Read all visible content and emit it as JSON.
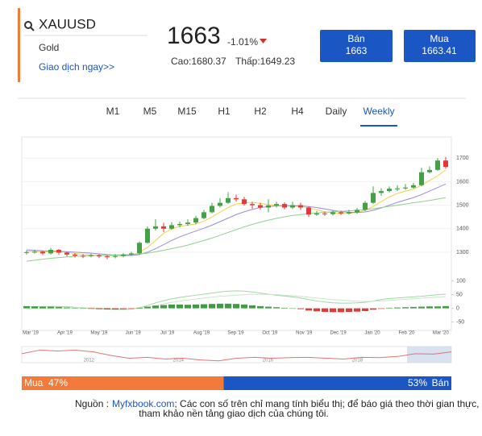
{
  "header": {
    "symbol": "XAUUSD",
    "name": "Gold",
    "trade_link": "Giao dịch ngay>>",
    "price": "1663",
    "change": "-1.01%",
    "high": "Cao:1680.37",
    "low": "Thấp:1649.23"
  },
  "buttons": [
    {
      "label": "Bán",
      "price": "1663"
    },
    {
      "label": "Mua",
      "price": "1663.41"
    }
  ],
  "tabs": [
    "M1",
    "M5",
    "M15",
    "H1",
    "H2",
    "H4",
    "Daily",
    "Weekly"
  ],
  "active_tab": 7,
  "chart_data": [
    {
      "type": "candlestick",
      "x_labels": [
        "Mar '19",
        "Apr '19",
        "May '19",
        "Jun '19",
        "Jul '19",
        "Aug '19",
        "Sep '19",
        "Oct '19",
        "Nov '19",
        "Dec '19",
        "Jan '20",
        "Feb '20",
        "Mar '20"
      ],
      "open": [
        1298,
        1300,
        1302,
        1295,
        1310,
        1298,
        1290,
        1285,
        1283,
        1287,
        1282,
        1280,
        1284,
        1290,
        1295,
        1340,
        1400,
        1410,
        1400,
        1415,
        1420,
        1426,
        1445,
        1470,
        1497,
        1510,
        1530,
        1525,
        1505,
        1500,
        1490,
        1499,
        1505,
        1490,
        1500,
        1490,
        1460,
        1465,
        1462,
        1470,
        1465,
        1470,
        1480,
        1510,
        1552,
        1560,
        1570,
        1571,
        1575,
        1585,
        1640,
        1650,
        1690
      ],
      "high": [
        1308,
        1310,
        1306,
        1318,
        1314,
        1302,
        1296,
        1292,
        1294,
        1292,
        1288,
        1292,
        1296,
        1302,
        1346,
        1410,
        1440,
        1425,
        1428,
        1430,
        1440,
        1455,
        1480,
        1510,
        1530,
        1555,
        1545,
        1535,
        1515,
        1510,
        1525,
        1515,
        1512,
        1515,
        1510,
        1495,
        1475,
        1472,
        1478,
        1476,
        1480,
        1488,
        1518,
        1580,
        1572,
        1580,
        1585,
        1590,
        1595,
        1660,
        1665,
        1700,
        1705
      ],
      "low": [
        1290,
        1294,
        1288,
        1290,
        1290,
        1282,
        1277,
        1275,
        1278,
        1275,
        1270,
        1274,
        1278,
        1284,
        1290,
        1336,
        1392,
        1385,
        1395,
        1405,
        1412,
        1418,
        1440,
        1465,
        1490,
        1505,
        1515,
        1498,
        1485,
        1480,
        1470,
        1490,
        1482,
        1484,
        1480,
        1450,
        1455,
        1455,
        1456,
        1458,
        1460,
        1464,
        1475,
        1505,
        1540,
        1555,
        1560,
        1565,
        1570,
        1580,
        1635,
        1645,
        1655
      ],
      "close": [
        1300,
        1302,
        1295,
        1310,
        1298,
        1290,
        1285,
        1283,
        1287,
        1282,
        1280,
        1284,
        1290,
        1295,
        1340,
        1400,
        1410,
        1400,
        1415,
        1420,
        1426,
        1445,
        1470,
        1497,
        1510,
        1530,
        1525,
        1505,
        1500,
        1490,
        1499,
        1505,
        1490,
        1500,
        1490,
        1460,
        1465,
        1462,
        1470,
        1465,
        1470,
        1480,
        1510,
        1552,
        1560,
        1570,
        1571,
        1575,
        1585,
        1640,
        1650,
        1690,
        1663
      ],
      "up_color": "#43a047",
      "down_color": "#e53935",
      "ylim": [
        1190,
        1790
      ],
      "yticks": [
        1300,
        1400,
        1500,
        1600,
        1700
      ],
      "grid": true,
      "series": [
        {
          "color": "#f2d24a",
          "values": [
            1305,
            1303,
            1302,
            1302,
            1301,
            1299,
            1295,
            1291,
            1288,
            1286,
            1284,
            1283,
            1284,
            1286,
            1300,
            1320,
            1350,
            1380,
            1400,
            1410,
            1415,
            1420,
            1432,
            1450,
            1470,
            1490,
            1505,
            1510,
            1512,
            1508,
            1502,
            1498,
            1497,
            1496,
            1495,
            1488,
            1480,
            1472,
            1466,
            1465,
            1466,
            1469,
            1478,
            1495,
            1515,
            1535,
            1550,
            1560,
            1568,
            1585,
            1605,
            1625,
            1650
          ]
        },
        {
          "color": "#9b8be0",
          "values": [
            1310,
            1308,
            1306,
            1305,
            1304,
            1302,
            1300,
            1298,
            1296,
            1293,
            1290,
            1288,
            1287,
            1286,
            1290,
            1300,
            1315,
            1332,
            1350,
            1365,
            1378,
            1390,
            1402,
            1415,
            1430,
            1445,
            1460,
            1472,
            1482,
            1490,
            1494,
            1497,
            1498,
            1498,
            1497,
            1494,
            1490,
            1484,
            1478,
            1473,
            1470,
            1469,
            1471,
            1478,
            1488,
            1500,
            1512,
            1522,
            1532,
            1545,
            1560,
            1575,
            1590
          ]
        },
        {
          "color": "#8fd18f",
          "values": [
            1262,
            1266,
            1270,
            1274,
            1277,
            1280,
            1282,
            1284,
            1285,
            1286,
            1287,
            1288,
            1289,
            1290,
            1292,
            1296,
            1302,
            1308,
            1315,
            1322,
            1330,
            1340,
            1350,
            1360,
            1372,
            1384,
            1396,
            1408,
            1418,
            1428,
            1436,
            1444,
            1450,
            1456,
            1460,
            1464,
            1467,
            1470,
            1472,
            1474,
            1476,
            1478,
            1481,
            1485,
            1490,
            1495,
            1500,
            1505,
            1510,
            1515,
            1520,
            1526,
            1532
          ]
        }
      ]
    },
    {
      "type": "macd",
      "ylim": [
        -75,
        105
      ],
      "yticks": [
        100,
        50,
        0,
        -50
      ],
      "pos_color": "#3e9d3e",
      "neg_color": "#e53935",
      "values": [
        8,
        7,
        6,
        6,
        5,
        3,
        1,
        0,
        -2,
        -3,
        -4,
        -4,
        -3,
        -2,
        2,
        6,
        10,
        12,
        14,
        14,
        13,
        14,
        15,
        16,
        17,
        17,
        16,
        14,
        11,
        8,
        6,
        4,
        2,
        0,
        -3,
        -8,
        -11,
        -13,
        -14,
        -14,
        -13,
        -12,
        -10,
        -5,
        -2,
        2,
        3,
        4,
        5,
        6,
        7,
        7,
        8
      ],
      "series": [
        {
          "color": "#9fd89f",
          "values": [
            5,
            6,
            6,
            7,
            7,
            6,
            4,
            2,
            0,
            -2,
            -3,
            -4,
            -4,
            -3,
            2,
            10,
            20,
            28,
            35,
            40,
            44,
            48,
            52,
            56,
            60,
            63,
            64,
            63,
            60,
            56,
            52,
            48,
            45,
            42,
            38,
            32,
            27,
            23,
            20,
            19,
            19,
            20,
            22,
            27,
            32,
            36,
            38,
            40,
            42,
            44,
            47,
            50,
            52
          ]
        },
        {
          "color": "#c7e8c7",
          "values": [
            -3,
            -1,
            0,
            1,
            2,
            2,
            3,
            2,
            2,
            1,
            0,
            -1,
            -1,
            -2,
            0,
            4,
            10,
            16,
            22,
            26,
            31,
            34,
            38,
            41,
            44,
            46,
            48,
            50,
            51,
            51,
            51,
            50,
            48,
            46,
            44,
            41,
            38,
            35,
            32,
            30,
            28,
            26,
            25,
            26,
            27,
            29,
            31,
            33,
            35,
            37,
            39,
            41,
            43
          ]
        }
      ]
    },
    {
      "type": "line",
      "xlim": [
        2010.5,
        2020.1
      ],
      "xticks": [
        2012,
        2014,
        2016,
        2018
      ],
      "ylim": [
        1000,
        1900
      ],
      "color": "#e57373",
      "x": [
        2010.5,
        2010.9,
        2011.3,
        2011.7,
        2012.1,
        2012.5,
        2012.9,
        2013.3,
        2013.7,
        2014.1,
        2014.5,
        2014.9,
        2015.3,
        2015.7,
        2016.1,
        2016.5,
        2016.9,
        2017.3,
        2017.7,
        2018.1,
        2018.5,
        2018.9,
        2019.3,
        2019.7,
        2020.1
      ],
      "values": [
        1500,
        1700,
        1650,
        1700,
        1600,
        1400,
        1250,
        1300,
        1200,
        1250,
        1150,
        1100,
        1250,
        1300,
        1250,
        1280,
        1300,
        1250,
        1200,
        1300,
        1280,
        1350,
        1500,
        1480,
        1600
      ]
    }
  ],
  "sentiment": {
    "buy_label": "Mua",
    "buy": 47,
    "buy_value_label": "47%",
    "sell": 53,
    "sell_value_label": "53%",
    "sell_label": "Bán"
  },
  "footer": {
    "source": "Nguồn :",
    "link": "Myfxbook.com",
    "line1": "; Các con số trên chỉ mang tính biểu thị; để báo giá theo thời gian thực, vui lòng",
    "line2": "tham khảo nền tảng giao dịch của chúng tôi."
  }
}
